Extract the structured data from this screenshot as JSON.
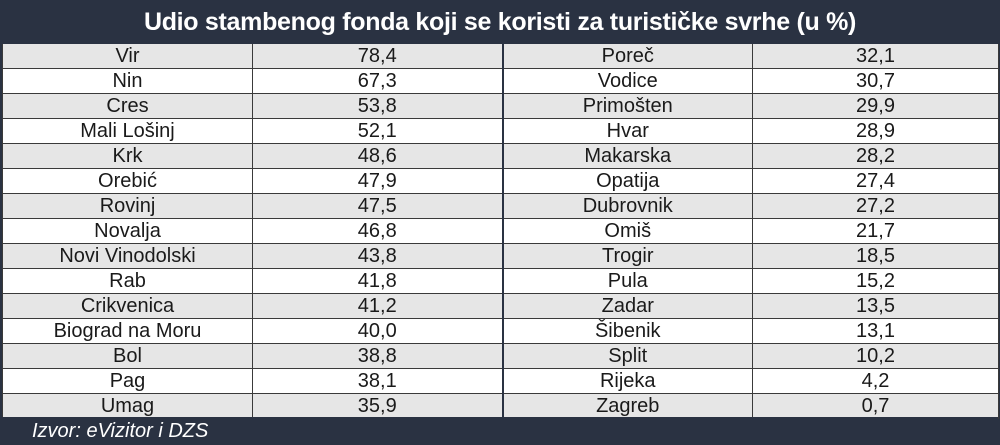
{
  "chart_data": {
    "type": "table",
    "title": "Udio stambenog fonda koji se koristi za turističke svrhe (u %)",
    "source": "Izvor: eVizitor i DZS",
    "rows": [
      {
        "left_name": "Vir",
        "left_value": "78,4",
        "right_name": "Poreč",
        "right_value": "32,1"
      },
      {
        "left_name": "Nin",
        "left_value": "67,3",
        "right_name": "Vodice",
        "right_value": "30,7"
      },
      {
        "left_name": "Cres",
        "left_value": "53,8",
        "right_name": "Primošten",
        "right_value": "29,9"
      },
      {
        "left_name": "Mali Lošinj",
        "left_value": "52,1",
        "right_name": "Hvar",
        "right_value": "28,9"
      },
      {
        "left_name": "Krk",
        "left_value": "48,6",
        "right_name": "Makarska",
        "right_value": "28,2"
      },
      {
        "left_name": "Orebić",
        "left_value": "47,9",
        "right_name": "Opatija",
        "right_value": "27,4"
      },
      {
        "left_name": "Rovinj",
        "left_value": "47,5",
        "right_name": "Dubrovnik",
        "right_value": "27,2"
      },
      {
        "left_name": "Novalja",
        "left_value": "46,8",
        "right_name": "Omiš",
        "right_value": "21,7"
      },
      {
        "left_name": "Novi Vinodolski",
        "left_value": "43,8",
        "right_name": "Trogir",
        "right_value": "18,5"
      },
      {
        "left_name": "Rab",
        "left_value": "41,8",
        "right_name": "Pula",
        "right_value": "15,2"
      },
      {
        "left_name": "Crikvenica",
        "left_value": "41,2",
        "right_name": "Zadar",
        "right_value": "13,5"
      },
      {
        "left_name": "Biograd na Moru",
        "left_value": "40,0",
        "right_name": "Šibenik",
        "right_value": "13,1"
      },
      {
        "left_name": "Bol",
        "left_value": "38,8",
        "right_name": "Split",
        "right_value": "10,2"
      },
      {
        "left_name": "Pag",
        "left_value": "38,1",
        "right_name": "Rijeka",
        "right_value": "4,2"
      },
      {
        "left_name": "Umag",
        "left_value": "35,9",
        "right_name": "Zagreb",
        "right_value": "0,7"
      }
    ]
  }
}
